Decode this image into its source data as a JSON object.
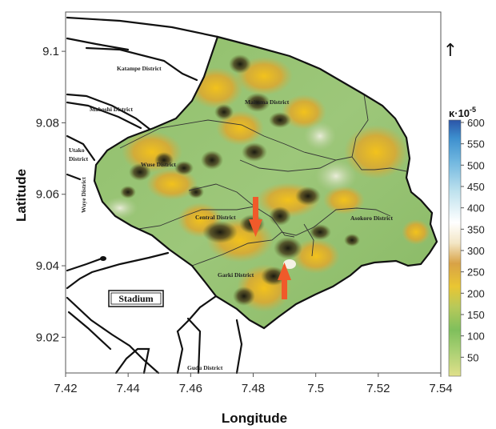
{
  "chart_data": {
    "type": "heatmap",
    "xlabel": "Longitude",
    "ylabel": "Latitude",
    "xlim": [
      7.42,
      7.54
    ],
    "ylim": [
      9.01,
      9.111
    ],
    "x_ticks": [
      "7.42",
      "7.44",
      "7.46",
      "7.48",
      "7.5",
      "7.52",
      "7.54"
    ],
    "y_ticks": [
      "9.1",
      "9.08",
      "9.06",
      "9.04",
      "9.02"
    ],
    "colorbar": {
      "title_base": "κ·10",
      "title_exp": "-5",
      "range": [
        0,
        600
      ],
      "ticks": [
        "600",
        "550",
        "500",
        "450",
        "400",
        "350",
        "300",
        "250",
        "200",
        "150",
        "100",
        "50"
      ],
      "colors": [
        "#d8d87a",
        "#7fbf5c",
        "#a4c46a",
        "#e8c33a",
        "#e0a63a",
        "#f0e2bc",
        "#ffffff",
        "#bfe2ee",
        "#7ec4e4",
        "#3d8fce",
        "#2f5fae"
      ]
    },
    "districts": [
      "Katampe District",
      "Maboshi District",
      "Maitama District",
      "Utako District",
      "Wuye District",
      "Wuse District",
      "Central District",
      "Asokoro District",
      "Garki District",
      "Gudu District"
    ],
    "north_arrow": "↑",
    "landmark": "Stadium"
  }
}
